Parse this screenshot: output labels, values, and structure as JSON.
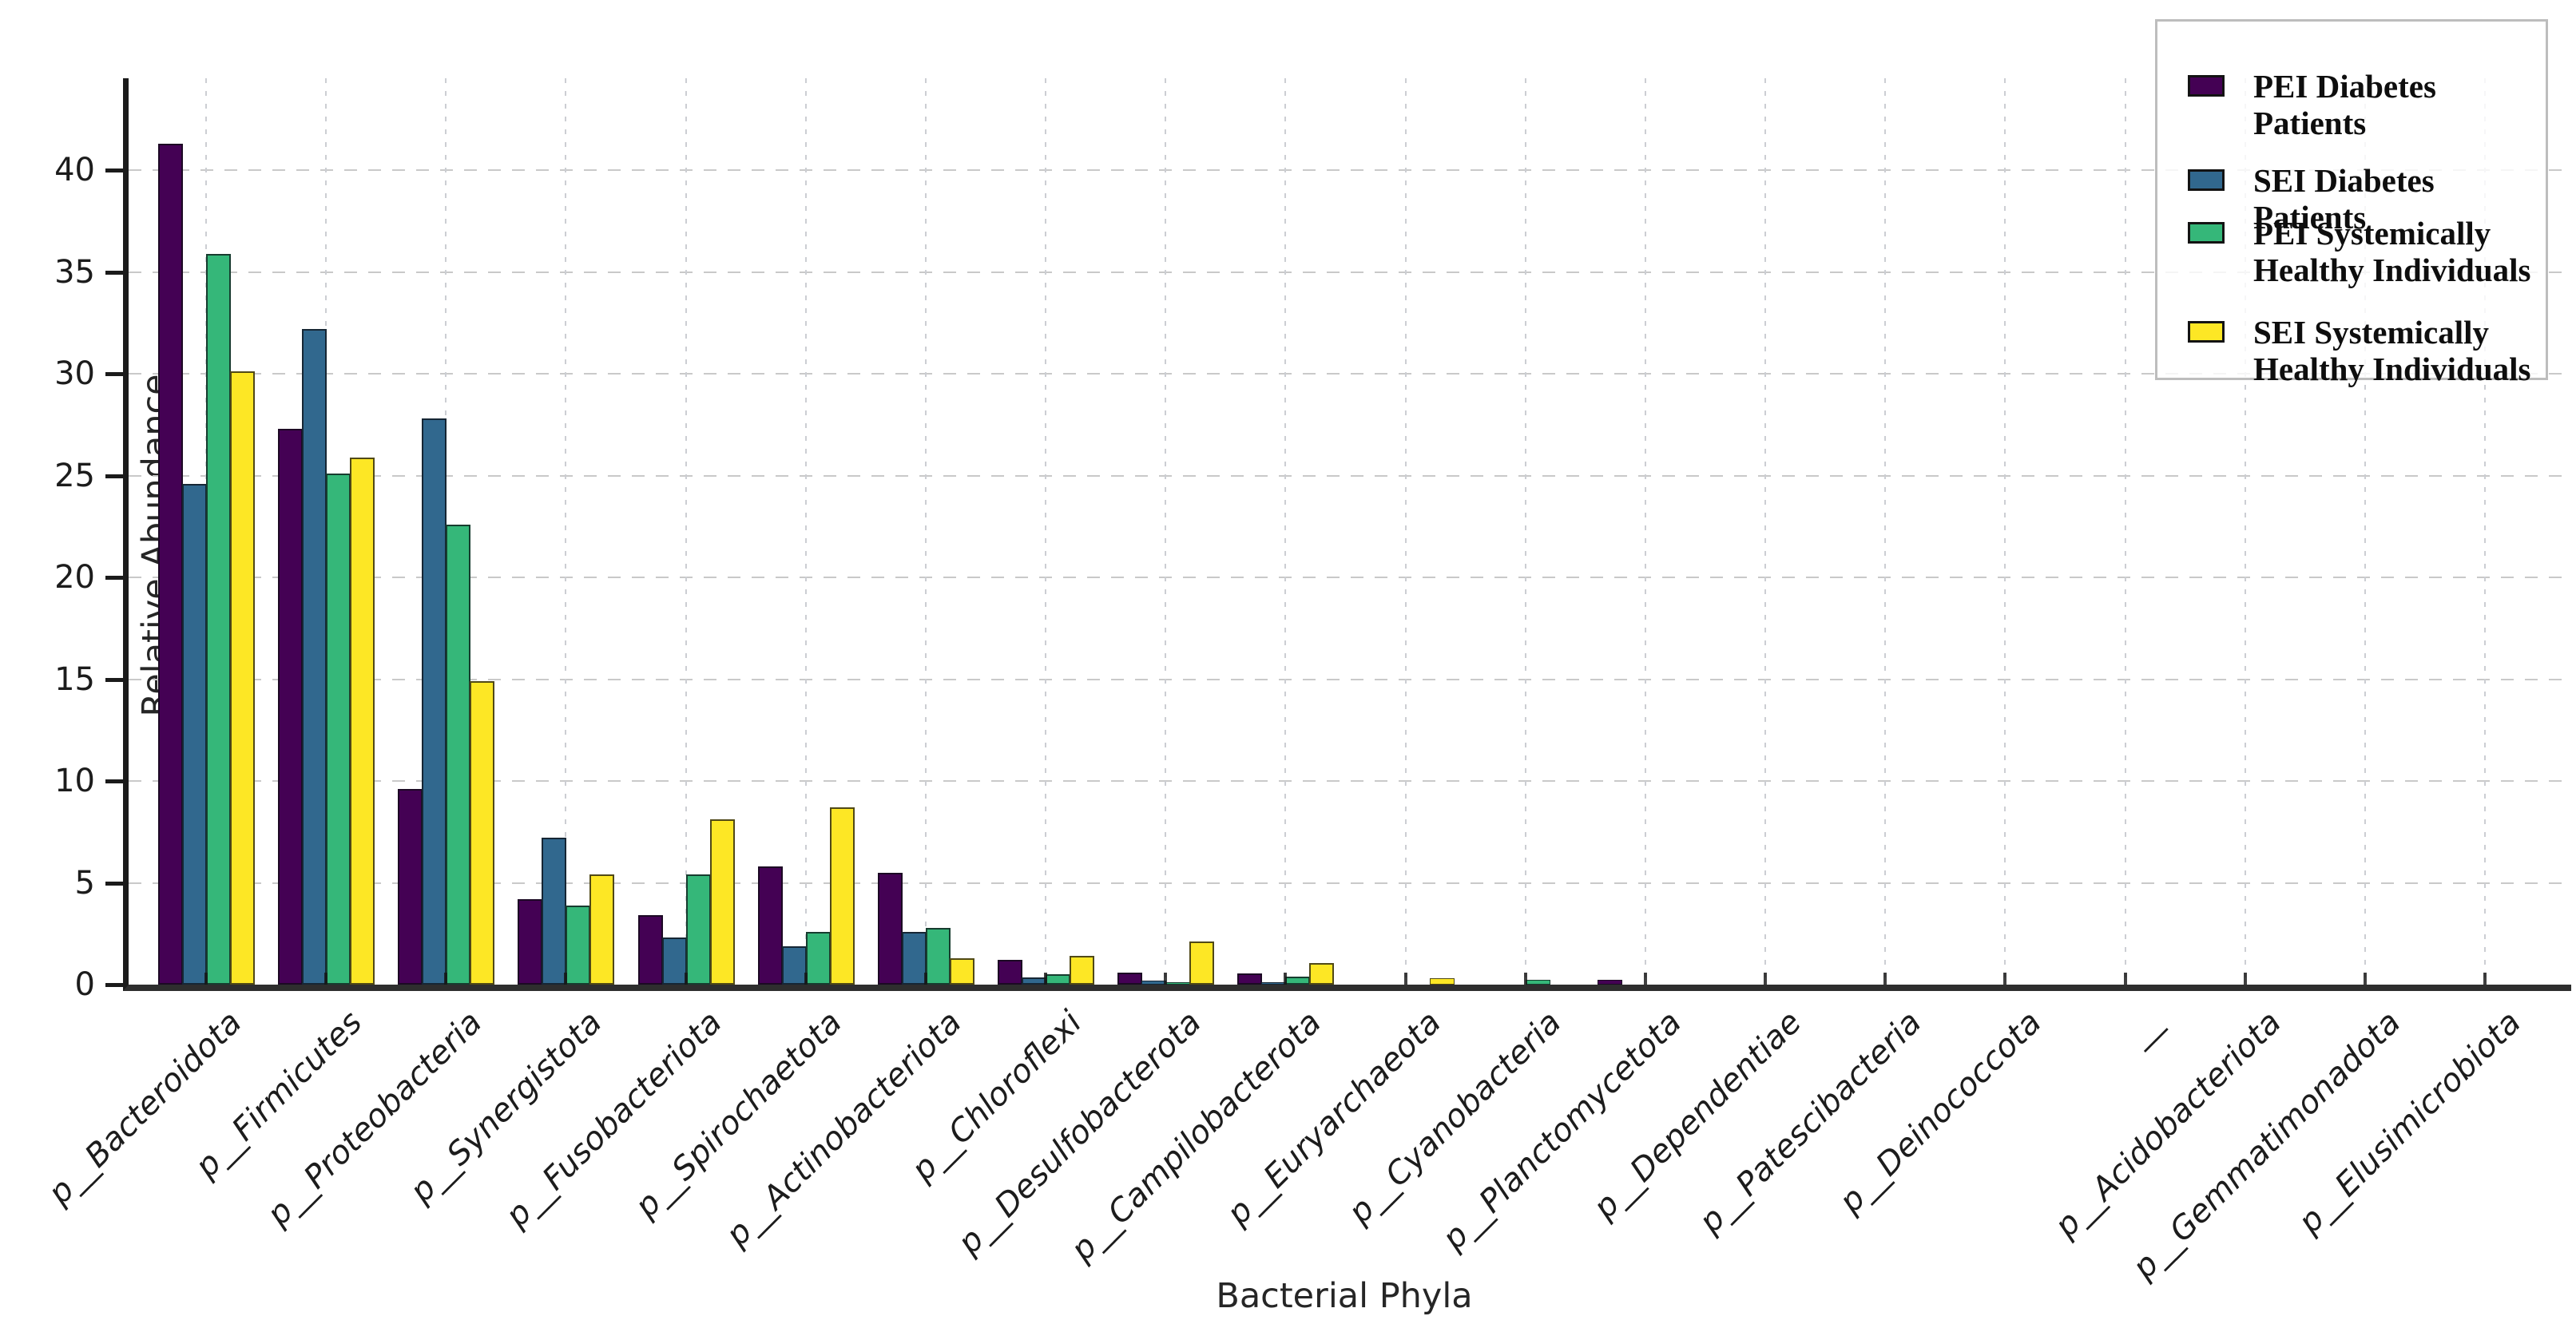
{
  "chart_data": {
    "type": "bar",
    "title": "",
    "xlabel": "Bacterial Phyla",
    "ylabel": "Relative Abundance (%)",
    "ylim": [
      0,
      44.5
    ],
    "yticks": [
      0,
      5,
      10,
      15,
      20,
      25,
      30,
      35,
      40
    ],
    "grid": "horizontal dashed + vertical dotted at group centers",
    "legend_position": "upper right",
    "bar_edge_color": "#0c0c12",
    "categories": [
      "p__Bacteroidota",
      "p__Firmicutes",
      "p__Proteobacteria",
      "p__Synergistota",
      "p__Fusobacteriota",
      "p__Spirochaetota",
      "p__Actinobacteriota",
      "p__Chloroflexi",
      "p__Desulfobacterota",
      "p__Campilobacterota",
      "p__Euryarchaeota",
      "p__Cyanobacteria",
      "p__Planctomycetota",
      "p__Dependentiae",
      "p__Patescibacteria",
      "p__Deinococcota",
      "__",
      "p__Acidobacteriota",
      "p__Gemmatimonadota",
      "p__Elusimicrobiota"
    ],
    "series": [
      {
        "name": "PEI Diabetes Patients",
        "color": "#440154",
        "values": [
          41.3,
          27.3,
          9.6,
          4.2,
          3.4,
          5.8,
          5.5,
          1.2,
          0.6,
          0.55,
          0,
          0,
          0.25,
          0,
          0,
          0,
          0,
          0,
          0,
          0
        ]
      },
      {
        "name": "SEI Diabetes Patients",
        "color": "#31688e",
        "values": [
          24.6,
          32.2,
          27.8,
          7.2,
          2.3,
          1.9,
          2.6,
          0.35,
          0.2,
          0.05,
          0,
          0,
          0,
          0,
          0,
          0,
          0,
          0,
          0,
          0
        ]
      },
      {
        "name": "PEI Systemically\nHealthy Individuals",
        "color": "#35b779",
        "values": [
          35.9,
          25.1,
          22.6,
          3.9,
          5.4,
          2.6,
          2.8,
          0.5,
          0.05,
          0.4,
          0,
          0.25,
          0,
          0,
          0,
          0,
          0,
          0,
          0,
          0
        ]
      },
      {
        "name": "SEI Systemically\nHealthy Individuals",
        "color": "#fde725",
        "values": [
          30.1,
          25.9,
          14.9,
          5.4,
          8.1,
          8.7,
          1.3,
          1.4,
          2.1,
          1.05,
          0.3,
          0,
          0,
          0,
          0,
          0,
          0,
          0,
          0,
          0
        ]
      }
    ]
  }
}
